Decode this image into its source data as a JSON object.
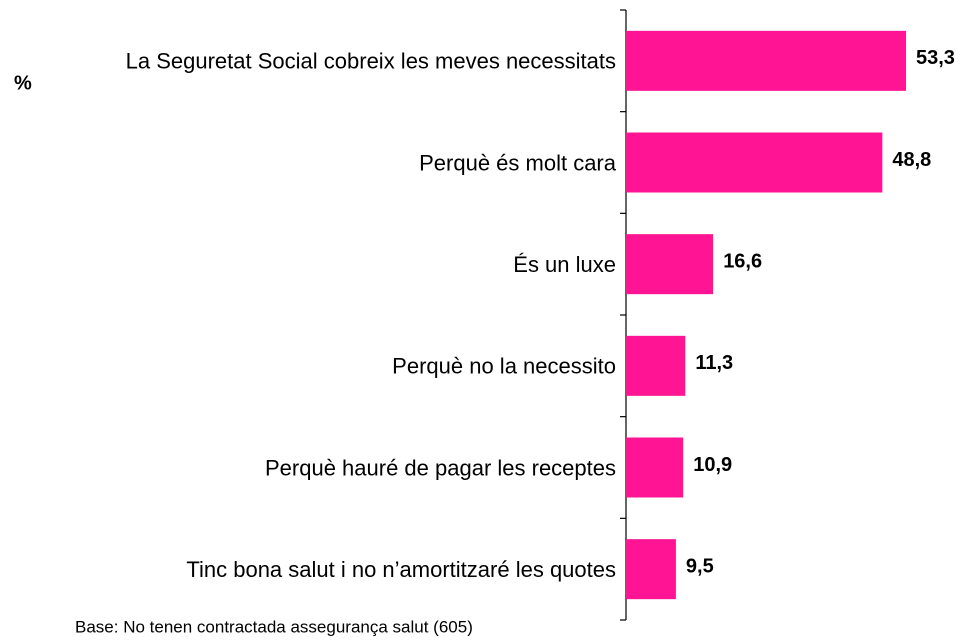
{
  "chart_data": {
    "type": "bar",
    "orientation": "horizontal",
    "unit_label": "%",
    "categories": [
      "La Seguretat Social cobreix les meves necessitats",
      "Perquè és molt cara",
      "És un luxe",
      "Perquè no la necessito",
      "Perquè hauré de pagar les receptes",
      "Tinc bona salut i no n’amortitzaré les quotes"
    ],
    "values": [
      53.3,
      48.8,
      16.6,
      11.3,
      10.9,
      9.5
    ],
    "value_labels": [
      "53,3",
      "48,8",
      "16,6",
      "11,3",
      "10,9",
      "9,5"
    ],
    "color": "#ff1493",
    "note": "Base: No tenen contractada assegurança salut (605)"
  }
}
